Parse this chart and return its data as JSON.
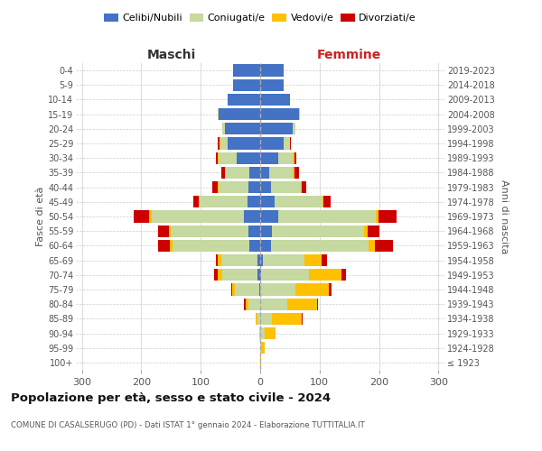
{
  "age_groups": [
    "100+",
    "95-99",
    "90-94",
    "85-89",
    "80-84",
    "75-79",
    "70-74",
    "65-69",
    "60-64",
    "55-59",
    "50-54",
    "45-49",
    "40-44",
    "35-39",
    "30-34",
    "25-29",
    "20-24",
    "15-19",
    "10-14",
    "5-9",
    "0-4"
  ],
  "birth_years": [
    "≤ 1923",
    "1924-1928",
    "1929-1933",
    "1934-1938",
    "1939-1943",
    "1944-1948",
    "1949-1953",
    "1954-1958",
    "1959-1963",
    "1964-1968",
    "1969-1973",
    "1974-1978",
    "1979-1983",
    "1984-1988",
    "1989-1993",
    "1994-1998",
    "1999-2003",
    "2004-2008",
    "2009-2013",
    "2014-2018",
    "2019-2023"
  ],
  "colors": {
    "celibe": "#4472c4",
    "coniugato": "#c5d9a0",
    "vedovo": "#ffc000",
    "divorziato": "#cc0000"
  },
  "maschi": {
    "celibe": [
      0,
      0,
      0,
      0,
      0,
      2,
      4,
      5,
      18,
      20,
      28,
      22,
      20,
      18,
      40,
      55,
      60,
      70,
      55,
      45,
      45
    ],
    "coniugato": [
      0,
      0,
      1,
      5,
      20,
      40,
      60,
      60,
      130,
      130,
      155,
      80,
      50,
      40,
      30,
      12,
      4,
      2,
      0,
      0,
      0
    ],
    "vedovo": [
      0,
      0,
      0,
      2,
      5,
      5,
      8,
      6,
      4,
      4,
      4,
      2,
      2,
      2,
      2,
      2,
      0,
      0,
      0,
      0,
      0
    ],
    "divorziato": [
      0,
      0,
      0,
      0,
      2,
      2,
      5,
      4,
      20,
      18,
      25,
      8,
      8,
      5,
      2,
      2,
      0,
      0,
      0,
      0,
      0
    ]
  },
  "femmine": {
    "nubile": [
      0,
      0,
      0,
      0,
      0,
      0,
      2,
      4,
      18,
      20,
      30,
      25,
      18,
      15,
      30,
      40,
      55,
      65,
      50,
      40,
      40
    ],
    "coniugata": [
      0,
      2,
      8,
      20,
      45,
      60,
      80,
      70,
      165,
      155,
      165,
      80,
      50,
      40,
      25,
      10,
      4,
      2,
      0,
      0,
      0
    ],
    "vedova": [
      2,
      5,
      18,
      50,
      50,
      55,
      55,
      30,
      10,
      6,
      4,
      2,
      2,
      2,
      2,
      0,
      0,
      0,
      0,
      0,
      0
    ],
    "divorziata": [
      0,
      0,
      0,
      2,
      2,
      5,
      8,
      8,
      30,
      20,
      30,
      12,
      8,
      8,
      4,
      2,
      0,
      0,
      0,
      0,
      0
    ]
  },
  "xlim": 310,
  "title": "Popolazione per età, sesso e stato civile - 2024",
  "subtitle": "COMUNE DI CASALSERUGO (PD) - Dati ISTAT 1° gennaio 2024 - Elaborazione TUTTITALIA.IT",
  "ylabel_left": "Fasce di età",
  "ylabel_right": "Anni di nascita",
  "xlabel_left": "Maschi",
  "xlabel_right": "Femmine",
  "legend_labels": [
    "Celibi/Nubili",
    "Coniugati/e",
    "Vedovi/e",
    "Divorziati/e"
  ]
}
